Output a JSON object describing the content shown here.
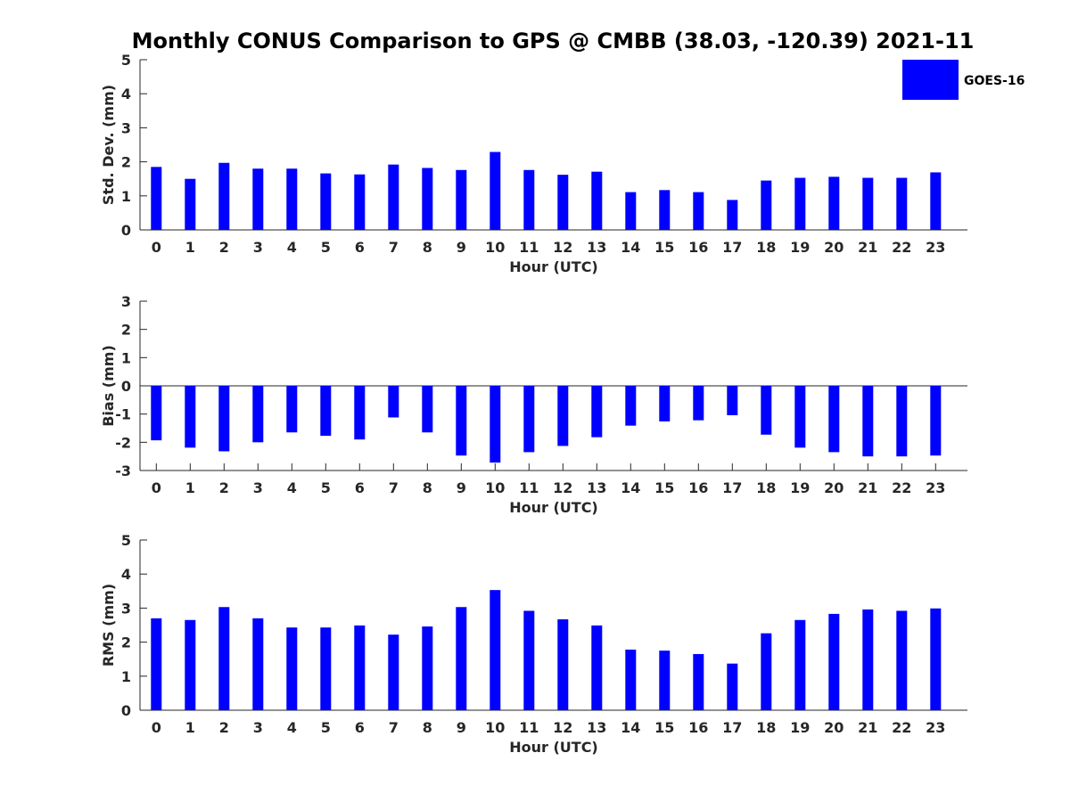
{
  "chart_data": [
    {
      "type": "bar",
      "title": "Monthly CONUS Comparison to GPS @ CMBB (38.03, -120.39) 2021-11",
      "xlabel": "Hour (UTC)",
      "ylabel": "Std. Dev. (mm)",
      "ylim": [
        0,
        5
      ],
      "yticks": [
        0,
        1,
        2,
        3,
        4,
        5
      ],
      "categories": [
        "0",
        "1",
        "2",
        "3",
        "4",
        "5",
        "6",
        "7",
        "8",
        "9",
        "10",
        "11",
        "12",
        "13",
        "14",
        "15",
        "16",
        "17",
        "18",
        "19",
        "20",
        "21",
        "22",
        "23"
      ],
      "series": [
        {
          "name": "GOES-16",
          "color": "#0000ff",
          "values": [
            1.85,
            1.5,
            1.97,
            1.8,
            1.8,
            1.66,
            1.63,
            1.92,
            1.82,
            1.76,
            2.29,
            1.76,
            1.62,
            1.71,
            1.11,
            1.17,
            1.11,
            0.88,
            1.45,
            1.53,
            1.56,
            1.53,
            1.53,
            1.69
          ]
        }
      ],
      "legend": {
        "entries": [
          "GOES-16"
        ],
        "position": "top-right"
      }
    },
    {
      "type": "bar",
      "xlabel": "Hour (UTC)",
      "ylabel": "Bias (mm)",
      "ylim": [
        -3,
        3
      ],
      "yticks": [
        -3,
        -2,
        -1,
        0,
        1,
        2,
        3
      ],
      "categories": [
        "0",
        "1",
        "2",
        "3",
        "4",
        "5",
        "6",
        "7",
        "8",
        "9",
        "10",
        "11",
        "12",
        "13",
        "14",
        "15",
        "16",
        "17",
        "18",
        "19",
        "20",
        "21",
        "22",
        "23"
      ],
      "series": [
        {
          "name": "GOES-16",
          "color": "#0000ff",
          "values": [
            -1.93,
            -2.19,
            -2.32,
            -2.0,
            -1.65,
            -1.77,
            -1.9,
            -1.12,
            -1.65,
            -2.47,
            -2.72,
            -2.35,
            -2.13,
            -1.82,
            -1.41,
            -1.26,
            -1.22,
            -1.04,
            -1.73,
            -2.19,
            -2.35,
            -2.5,
            -2.5,
            -2.47
          ]
        }
      ]
    },
    {
      "type": "bar",
      "xlabel": "Hour (UTC)",
      "ylabel": "RMS (mm)",
      "ylim": [
        0,
        5
      ],
      "yticks": [
        0,
        1,
        2,
        3,
        4,
        5
      ],
      "categories": [
        "0",
        "1",
        "2",
        "3",
        "4",
        "5",
        "6",
        "7",
        "8",
        "9",
        "10",
        "11",
        "12",
        "13",
        "14",
        "15",
        "16",
        "17",
        "18",
        "19",
        "20",
        "21",
        "22",
        "23"
      ],
      "series": [
        {
          "name": "GOES-16",
          "color": "#0000ff",
          "values": [
            2.7,
            2.65,
            3.03,
            2.7,
            2.43,
            2.43,
            2.49,
            2.22,
            2.46,
            3.03,
            3.53,
            2.92,
            2.67,
            2.49,
            1.78,
            1.75,
            1.65,
            1.37,
            2.26,
            2.65,
            2.83,
            2.96,
            2.92,
            2.99
          ]
        }
      ]
    }
  ]
}
